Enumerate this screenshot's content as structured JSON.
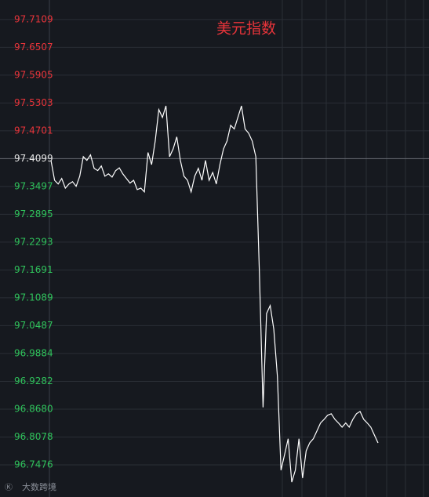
{
  "chart_data": {
    "type": "line",
    "title": "美元指数",
    "values": [
      97.406,
      97.363,
      97.355,
      97.367,
      97.346,
      97.355,
      97.36,
      97.35,
      97.372,
      97.414,
      97.406,
      97.418,
      97.389,
      97.384,
      97.394,
      97.372,
      97.377,
      97.37,
      97.384,
      97.39,
      97.377,
      97.367,
      97.357,
      97.363,
      97.343,
      97.346,
      97.338,
      97.423,
      97.397,
      97.448,
      97.516,
      97.499,
      97.524,
      97.414,
      97.431,
      97.457,
      97.406,
      97.372,
      97.363,
      97.338,
      97.372,
      97.389,
      97.363,
      97.406,
      97.363,
      97.38,
      97.355,
      97.397,
      97.431,
      97.448,
      97.482,
      97.474,
      97.499,
      97.524,
      97.474,
      97.465,
      97.448,
      97.414,
      97.16,
      96.872,
      97.075,
      97.092,
      97.041,
      96.939,
      96.736,
      96.77,
      96.804,
      96.71,
      96.736,
      96.804,
      96.719,
      96.778,
      96.795,
      96.804,
      96.821,
      96.838,
      96.846,
      96.855,
      96.858,
      96.846,
      96.838,
      96.829,
      96.838,
      96.829,
      96.846,
      96.858,
      96.863,
      96.846,
      96.838,
      96.829,
      96.812,
      96.795
    ],
    "line_color": "#ffffff",
    "base_value": 97.4099,
    "up_color": "#e8343a",
    "down_color": "#2fc25b",
    "ylim": [
      96.678,
      97.753
    ],
    "yticks": [
      97.7109,
      97.6507,
      97.5905,
      97.5303,
      97.4701,
      97.4099,
      97.3497,
      97.2895,
      97.2293,
      97.1691,
      97.1089,
      97.0487,
      96.9884,
      96.9282,
      {
        "value": 96.868,
        "label": "96.8680"
      },
      96.8078,
      96.7476
    ],
    "grid": true,
    "watermark": "大数跨境"
  }
}
